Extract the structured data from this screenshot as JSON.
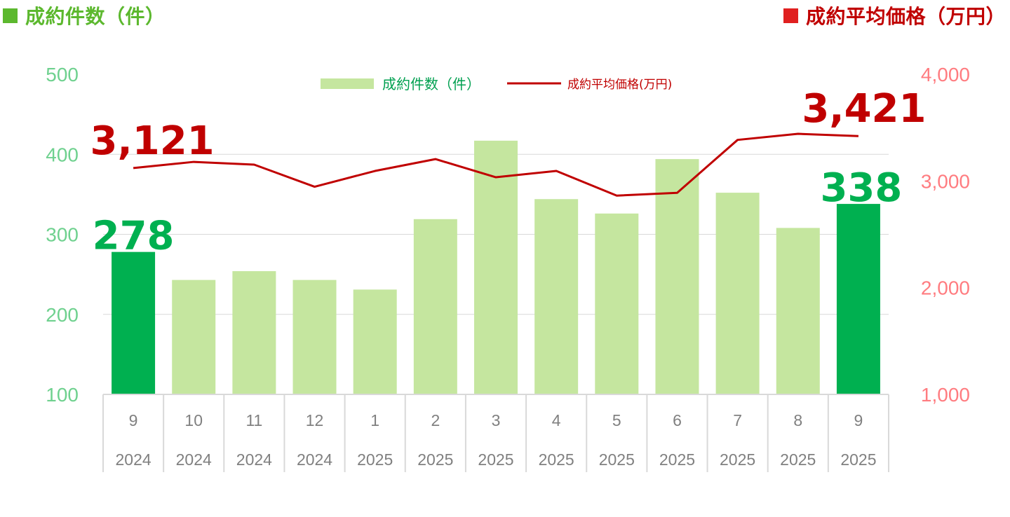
{
  "header": {
    "left_title": "成約件数（件）",
    "right_title": "成約平均価格（万円）"
  },
  "colors": {
    "bar_normal": "#c5e69f",
    "bar_highlight": "#00b050",
    "line": "#c00000",
    "left_axis": "#6fd18f",
    "right_axis": "#ff7c80",
    "header_left_square": "#5cb82e",
    "header_left_text": "#5cb82e",
    "header_right_square": "#e02020",
    "header_right_text": "#c00000",
    "grid": "#d9d9d9"
  },
  "chart_data": {
    "type": "bar+line",
    "categories": [
      {
        "month": "9",
        "year": "2024"
      },
      {
        "month": "10",
        "year": "2024"
      },
      {
        "month": "11",
        "year": "2024"
      },
      {
        "month": "12",
        "year": "2024"
      },
      {
        "month": "1",
        "year": "2025"
      },
      {
        "month": "2",
        "year": "2025"
      },
      {
        "month": "3",
        "year": "2025"
      },
      {
        "month": "4",
        "year": "2025"
      },
      {
        "month": "5",
        "year": "2025"
      },
      {
        "month": "6",
        "year": "2025"
      },
      {
        "month": "7",
        "year": "2025"
      },
      {
        "month": "8",
        "year": "2025"
      },
      {
        "month": "9",
        "year": "2025"
      }
    ],
    "series": [
      {
        "name": "成約件数（件）",
        "type": "bar",
        "axis": "left",
        "values": [
          278,
          243,
          254,
          243,
          231,
          319,
          417,
          344,
          326,
          394,
          352,
          308,
          338
        ],
        "highlight_indices": [
          0,
          12
        ]
      },
      {
        "name": "成約平均価格(万円)",
        "type": "line",
        "axis": "right",
        "values": [
          3121,
          3179,
          3153,
          2946,
          3094,
          3205,
          3035,
          3094,
          2863,
          2889,
          3385,
          3442,
          3421
        ]
      }
    ],
    "y_left": {
      "min": 100,
      "max": 500,
      "ticks": [
        "100",
        "200",
        "300",
        "400",
        "500"
      ]
    },
    "y_right": {
      "min": 1000,
      "max": 4000,
      "ticks": [
        "1,000",
        "2,000",
        "3,000",
        "4,000"
      ]
    },
    "annotations": [
      {
        "text": "3,121",
        "series": "line",
        "index": 0
      },
      {
        "text": "3,421",
        "series": "line",
        "index": 12
      },
      {
        "text": "278",
        "series": "bar",
        "index": 0
      },
      {
        "text": "338",
        "series": "bar",
        "index": 12
      }
    ],
    "legend": {
      "placement": "top-center",
      "bar_label": "成約件数（件）",
      "line_label": "成約平均価格(万円)"
    },
    "grid": true
  }
}
